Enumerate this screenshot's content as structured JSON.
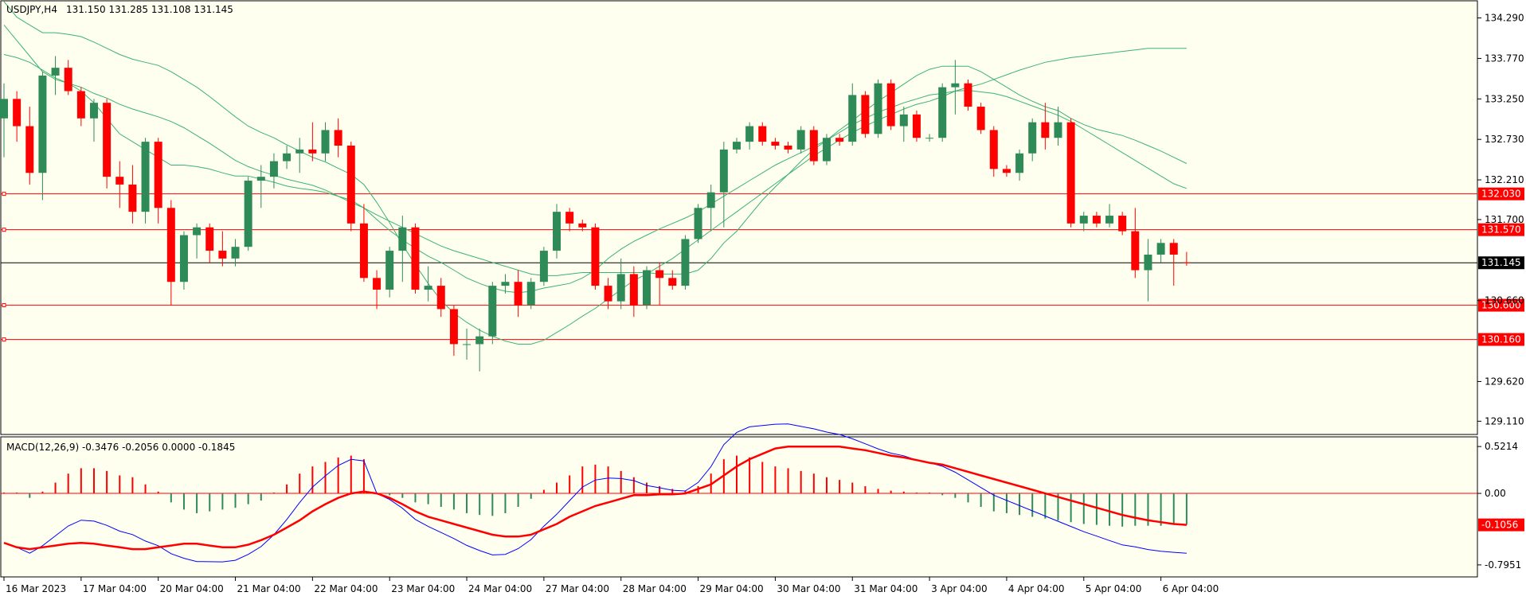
{
  "colors": {
    "background": "#fffff0",
    "bull": "#2e8b57",
    "bear": "#ff0000",
    "bands": "#3cb371",
    "level_line": "#ff0000",
    "price_line": "#000000",
    "macd_main": "#0000ff",
    "macd_signal": "#ff0000"
  },
  "chart_data": [
    {
      "type": "candlestick",
      "title": "USDJPY,H4",
      "ohlc_readout": "131.150 131.285 131.108 131.145",
      "y_ticks": [
        "134.290",
        "133.770",
        "133.250",
        "132.730",
        "132.210",
        "131.700",
        "130.660",
        "129.620",
        "129.110"
      ],
      "ylim": [
        128.95,
        134.5
      ],
      "x_tick_labels": [
        "16 Mar 2023",
        "17 Mar 04:00",
        "20 Mar 04:00",
        "21 Mar 04:00",
        "22 Mar 04:00",
        "23 Mar 04:00",
        "24 Mar 04:00",
        "27 Mar 04:00",
        "28 Mar 04:00",
        "29 Mar 04:00",
        "30 Mar 04:00",
        "31 Mar 04:00",
        "3 Apr 04:00",
        "4 Apr 04:00",
        "5 Apr 04:00",
        "6 Apr 04:00"
      ],
      "x_tick_index": [
        0,
        6,
        12,
        18,
        24,
        30,
        36,
        42,
        48,
        54,
        60,
        66,
        72,
        78,
        84,
        90
      ],
      "candles": [
        [
          133.0,
          133.45,
          132.5,
          133.25
        ],
        [
          133.25,
          133.35,
          132.7,
          132.9
        ],
        [
          132.9,
          133.15,
          132.15,
          132.3
        ],
        [
          132.3,
          133.6,
          131.95,
          133.55
        ],
        [
          133.55,
          133.8,
          133.3,
          133.65
        ],
        [
          133.65,
          133.75,
          133.3,
          133.35
        ],
        [
          133.35,
          133.4,
          132.9,
          133.0
        ],
        [
          133.0,
          133.25,
          132.7,
          133.2
        ],
        [
          133.2,
          133.25,
          132.1,
          132.25
        ],
        [
          132.25,
          132.45,
          131.85,
          132.15
        ],
        [
          132.15,
          132.4,
          131.65,
          131.8
        ],
        [
          131.8,
          132.75,
          131.65,
          132.7
        ],
        [
          132.7,
          132.75,
          131.65,
          131.85
        ],
        [
          131.85,
          131.95,
          130.6,
          130.9
        ],
        [
          130.9,
          131.55,
          130.8,
          131.5
        ],
        [
          131.5,
          131.65,
          131.2,
          131.6
        ],
        [
          131.6,
          131.65,
          131.15,
          131.3
        ],
        [
          131.3,
          131.55,
          131.1,
          131.2
        ],
        [
          131.2,
          131.45,
          131.1,
          131.35
        ],
        [
          131.35,
          132.25,
          131.3,
          132.2
        ],
        [
          132.2,
          132.4,
          131.85,
          132.25
        ],
        [
          132.25,
          132.55,
          132.1,
          132.45
        ],
        [
          132.45,
          132.65,
          132.35,
          132.55
        ],
        [
          132.55,
          132.75,
          132.3,
          132.6
        ],
        [
          132.6,
          132.95,
          132.45,
          132.55
        ],
        [
          132.55,
          132.95,
          132.45,
          132.85
        ],
        [
          132.85,
          133.0,
          132.5,
          132.65
        ],
        [
          132.65,
          132.7,
          131.55,
          131.65
        ],
        [
          131.65,
          131.9,
          130.9,
          130.95
        ],
        [
          130.95,
          131.05,
          130.55,
          130.8
        ],
        [
          130.8,
          131.35,
          130.7,
          131.3
        ],
        [
          131.3,
          131.75,
          130.9,
          131.6
        ],
        [
          131.6,
          131.65,
          130.75,
          130.8
        ],
        [
          130.8,
          131.1,
          130.65,
          130.85
        ],
        [
          130.85,
          130.95,
          130.45,
          130.55
        ],
        [
          130.55,
          130.6,
          129.95,
          130.1
        ],
        [
          130.1,
          130.3,
          129.9,
          130.1
        ],
        [
          130.1,
          130.3,
          129.75,
          130.2
        ],
        [
          130.2,
          130.9,
          130.1,
          130.85
        ],
        [
          130.85,
          131.0,
          130.75,
          130.9
        ],
        [
          130.9,
          131.05,
          130.45,
          130.6
        ],
        [
          130.6,
          130.95,
          130.55,
          130.9
        ],
        [
          130.9,
          131.35,
          130.85,
          131.3
        ],
        [
          131.3,
          131.9,
          131.2,
          131.8
        ],
        [
          131.8,
          131.85,
          131.55,
          131.65
        ],
        [
          131.65,
          131.7,
          131.55,
          131.6
        ],
        [
          131.6,
          131.65,
          130.8,
          130.85
        ],
        [
          130.85,
          130.95,
          130.55,
          130.65
        ],
        [
          130.65,
          131.2,
          130.55,
          131.0
        ],
        [
          131.0,
          131.1,
          130.45,
          130.6
        ],
        [
          130.6,
          131.1,
          130.55,
          131.05
        ],
        [
          131.05,
          131.15,
          130.6,
          130.95
        ],
        [
          130.95,
          131.05,
          130.8,
          130.85
        ],
        [
          130.85,
          131.5,
          130.8,
          131.45
        ],
        [
          131.45,
          131.9,
          131.4,
          131.85
        ],
        [
          131.85,
          132.15,
          131.55,
          132.05
        ],
        [
          132.05,
          132.7,
          131.6,
          132.6
        ],
        [
          132.6,
          132.75,
          132.55,
          132.7
        ],
        [
          132.7,
          132.95,
          132.6,
          132.9
        ],
        [
          132.9,
          132.95,
          132.65,
          132.7
        ],
        [
          132.7,
          132.75,
          132.6,
          132.65
        ],
        [
          132.65,
          132.7,
          132.55,
          132.6
        ],
        [
          132.6,
          132.9,
          132.55,
          132.85
        ],
        [
          132.85,
          132.9,
          132.4,
          132.45
        ],
        [
          132.45,
          132.8,
          132.4,
          132.75
        ],
        [
          132.75,
          132.8,
          132.65,
          132.7
        ],
        [
          132.7,
          133.45,
          132.65,
          133.3
        ],
        [
          133.3,
          133.35,
          132.75,
          132.8
        ],
        [
          132.8,
          133.5,
          132.75,
          133.45
        ],
        [
          133.45,
          133.5,
          132.85,
          132.9
        ],
        [
          132.9,
          133.15,
          132.7,
          133.05
        ],
        [
          133.05,
          133.1,
          132.7,
          132.75
        ],
        [
          132.75,
          132.8,
          132.7,
          132.75
        ],
        [
          132.75,
          133.45,
          132.7,
          133.4
        ],
        [
          133.4,
          133.75,
          133.05,
          133.45
        ],
        [
          133.45,
          133.5,
          133.1,
          133.15
        ],
        [
          133.15,
          133.2,
          132.8,
          132.85
        ],
        [
          132.85,
          132.9,
          132.25,
          132.35
        ],
        [
          132.35,
          132.4,
          132.25,
          132.3
        ],
        [
          132.3,
          132.6,
          132.2,
          132.55
        ],
        [
          132.55,
          133.0,
          132.45,
          132.95
        ],
        [
          132.95,
          133.2,
          132.6,
          132.75
        ],
        [
          132.75,
          133.15,
          132.65,
          132.95
        ],
        [
          132.95,
          133.0,
          131.6,
          131.65
        ],
        [
          131.65,
          131.8,
          131.55,
          131.75
        ],
        [
          131.75,
          131.8,
          131.6,
          131.65
        ],
        [
          131.65,
          131.9,
          131.6,
          131.75
        ],
        [
          131.75,
          131.8,
          131.5,
          131.55
        ],
        [
          131.55,
          131.85,
          130.95,
          131.05
        ],
        [
          131.05,
          131.45,
          130.65,
          131.25
        ],
        [
          131.25,
          131.45,
          131.15,
          131.4
        ],
        [
          131.4,
          131.45,
          130.85,
          131.25
        ],
        [
          131.15,
          131.285,
          131.108,
          131.145
        ]
      ],
      "bollinger_upper": [
        133.82,
        133.78,
        133.72,
        133.62,
        133.52,
        133.45,
        133.4,
        133.32,
        133.26,
        133.18,
        133.12,
        133.07,
        133.02,
        132.96,
        132.88,
        132.78,
        132.68,
        132.57,
        132.46,
        132.38,
        132.32,
        132.27,
        132.22,
        132.18,
        132.14,
        132.08,
        132.0,
        131.92,
        131.85,
        131.76,
        131.68,
        131.6,
        131.52,
        131.44,
        131.36,
        131.3,
        131.25,
        131.2,
        131.15,
        131.1,
        131.05,
        131.0,
        130.98,
        130.98,
        131.0,
        131.02,
        131.02,
        131.02,
        131.02,
        131.02,
        131.02,
        131.0,
        131.0,
        131.0,
        131.05,
        131.2,
        131.4,
        131.55,
        131.75,
        131.95,
        132.12,
        132.28,
        132.45,
        132.6,
        132.72,
        132.85,
        132.97,
        133.1,
        133.22,
        133.33,
        133.44,
        133.55,
        133.63,
        133.67,
        133.67,
        133.67,
        133.6,
        133.5,
        133.4,
        133.3,
        133.22,
        133.15,
        133.1,
        133.0,
        132.92,
        132.86,
        132.82,
        132.78,
        132.72,
        132.65,
        132.58,
        132.5,
        132.42
      ],
      "bollinger_middle": [
        134.2,
        134.0,
        133.8,
        133.6,
        133.5,
        133.45,
        133.35,
        133.2,
        133.0,
        132.8,
        132.7,
        132.6,
        132.5,
        132.4,
        132.4,
        132.38,
        132.35,
        132.3,
        132.26,
        132.26,
        132.22,
        132.18,
        132.13,
        132.1,
        132.08,
        132.05,
        132.0,
        131.95,
        131.85,
        131.7,
        131.56,
        131.44,
        131.33,
        131.23,
        131.15,
        131.05,
        130.95,
        130.88,
        130.82,
        130.78,
        130.76,
        130.78,
        130.82,
        130.85,
        130.88,
        130.95,
        131.05,
        131.2,
        131.32,
        131.42,
        131.5,
        131.58,
        131.65,
        131.72,
        131.8,
        131.9,
        132.0,
        132.1,
        132.2,
        132.3,
        132.4,
        132.48,
        132.56,
        132.64,
        132.72,
        132.82,
        132.92,
        133.0,
        133.08,
        133.14,
        133.2,
        133.25,
        133.3,
        133.32,
        133.35,
        133.36,
        133.34,
        133.32,
        133.28,
        133.22,
        133.16,
        133.1,
        133.04,
        132.96,
        132.86,
        132.76,
        132.66,
        132.56,
        132.46,
        132.36,
        132.26,
        132.16,
        132.1
      ],
      "bollinger_lower": [
        134.5,
        134.3,
        134.2,
        134.1,
        134.1,
        134.08,
        134.05,
        133.98,
        133.9,
        133.82,
        133.76,
        133.72,
        133.68,
        133.6,
        133.5,
        133.4,
        133.28,
        133.15,
        133.02,
        132.9,
        132.82,
        132.75,
        132.66,
        132.58,
        132.5,
        132.44,
        132.36,
        132.28,
        132.15,
        131.92,
        131.66,
        131.38,
        131.12,
        130.88,
        130.66,
        130.5,
        130.38,
        130.28,
        130.2,
        130.14,
        130.1,
        130.1,
        130.15,
        130.25,
        130.35,
        130.46,
        130.56,
        130.68,
        130.8,
        130.92,
        131.0,
        131.1,
        131.2,
        131.32,
        131.44,
        131.56,
        131.68,
        131.8,
        131.92,
        132.04,
        132.16,
        132.28,
        132.4,
        132.52,
        132.62,
        132.72,
        132.82,
        132.9,
        132.98,
        133.05,
        133.12,
        133.18,
        133.22,
        133.28,
        133.35,
        133.4,
        133.44,
        133.5,
        133.56,
        133.62,
        133.67,
        133.72,
        133.75,
        133.78,
        133.8,
        133.82,
        133.84,
        133.86,
        133.88,
        133.9,
        133.9,
        133.9,
        133.9
      ],
      "horizontal_levels": [
        {
          "value": 132.03,
          "label": "132.030"
        },
        {
          "value": 131.57,
          "label": "131.570"
        },
        {
          "value": 130.6,
          "label": "130.600"
        },
        {
          "value": 130.16,
          "label": "130.160"
        }
      ],
      "current_price": {
        "value": 131.145,
        "label": "131.145"
      }
    },
    {
      "type": "macd",
      "title": "MACD(12,26,9) -0.3476 -0.2056 0.0000 -0.1845",
      "y_ticks": [
        "0.5214",
        "0.00",
        "-0.7951"
      ],
      "ylim": [
        -0.92,
        0.62
      ],
      "signal_label": "-0.1056",
      "histogram": [
        0.0,
        0.0,
        -0.05,
        0.02,
        0.12,
        0.22,
        0.28,
        0.28,
        0.25,
        0.2,
        0.18,
        0.1,
        0.02,
        -0.1,
        -0.18,
        -0.22,
        -0.2,
        -0.18,
        -0.16,
        -0.12,
        -0.08,
        0.0,
        0.1,
        0.22,
        0.3,
        0.35,
        0.4,
        0.42,
        0.38,
        0.0,
        -0.02,
        -0.05,
        -0.1,
        -0.12,
        -0.15,
        -0.18,
        -0.22,
        -0.24,
        -0.25,
        -0.22,
        -0.15,
        -0.06,
        0.04,
        0.12,
        0.2,
        0.3,
        0.32,
        0.3,
        0.25,
        0.18,
        0.12,
        0.08,
        0.05,
        0.03,
        0.08,
        0.22,
        0.38,
        0.42,
        0.4,
        0.35,
        0.3,
        0.28,
        0.25,
        0.22,
        0.18,
        0.15,
        0.12,
        0.08,
        0.05,
        0.03,
        0.02,
        0.0,
        0.0,
        -0.02,
        -0.05,
        -0.1,
        -0.15,
        -0.2,
        -0.22,
        -0.24,
        -0.26,
        -0.28,
        -0.3,
        -0.32,
        -0.34,
        -0.35,
        -0.36,
        -0.37,
        -0.36,
        -0.36,
        -0.36,
        -0.35,
        -0.35
      ],
      "signal": [
        -0.55,
        -0.6,
        -0.62,
        -0.6,
        -0.58,
        -0.56,
        -0.55,
        -0.56,
        -0.58,
        -0.6,
        -0.62,
        -0.62,
        -0.6,
        -0.58,
        -0.56,
        -0.56,
        -0.58,
        -0.6,
        -0.6,
        -0.57,
        -0.52,
        -0.46,
        -0.38,
        -0.3,
        -0.2,
        -0.12,
        -0.05,
        0.0,
        0.02,
        0.0,
        -0.05,
        -0.12,
        -0.2,
        -0.26,
        -0.3,
        -0.34,
        -0.38,
        -0.42,
        -0.46,
        -0.48,
        -0.48,
        -0.46,
        -0.4,
        -0.34,
        -0.26,
        -0.2,
        -0.14,
        -0.1,
        -0.06,
        -0.02,
        -0.02,
        -0.01,
        -0.01,
        0.0,
        0.05,
        0.1,
        0.2,
        0.3,
        0.38,
        0.44,
        0.5,
        0.52,
        0.52,
        0.52,
        0.52,
        0.52,
        0.5,
        0.48,
        0.45,
        0.42,
        0.4,
        0.37,
        0.34,
        0.32,
        0.28,
        0.24,
        0.2,
        0.16,
        0.12,
        0.08,
        0.04,
        0.0,
        -0.04,
        -0.08,
        -0.12,
        -0.16,
        -0.2,
        -0.24,
        -0.27,
        -0.3,
        -0.32,
        -0.34,
        -0.35
      ]
    }
  ]
}
